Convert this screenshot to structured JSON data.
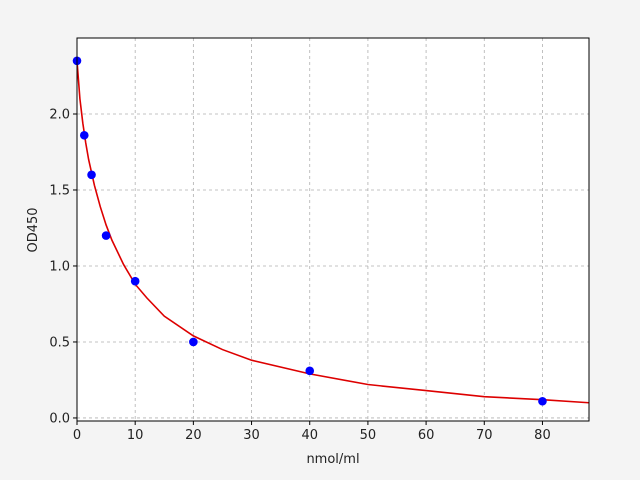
{
  "chart_data": {
    "type": "scatter",
    "title": "",
    "xlabel": "nmol/ml",
    "ylabel": "OD450",
    "xlim": [
      0,
      88
    ],
    "ylim": [
      -0.02,
      2.5
    ],
    "x_ticks": [
      0,
      10,
      20,
      30,
      40,
      50,
      60,
      70,
      80
    ],
    "y_ticks": [
      0.0,
      0.5,
      1.0,
      1.5,
      2.0
    ],
    "x_tick_labels": [
      "0",
      "10",
      "20",
      "30",
      "40",
      "50",
      "60",
      "70",
      "80"
    ],
    "y_tick_labels": [
      "0.0",
      "0.5",
      "1.0",
      "1.5",
      "2.0"
    ],
    "grid": true,
    "series": [
      {
        "kind": "points",
        "color": "#0000ff",
        "x": [
          0,
          1.25,
          2.5,
          5,
          10,
          20,
          40,
          80
        ],
        "y": [
          2.35,
          1.86,
          1.6,
          1.2,
          0.9,
          0.5,
          0.31,
          0.11
        ]
      },
      {
        "kind": "fitted-curve",
        "color": "#dd0000",
        "x": [
          0,
          0.5,
          1,
          1.5,
          2,
          3,
          4,
          5,
          6,
          8,
          10,
          12,
          15,
          20,
          25,
          30,
          40,
          50,
          60,
          70,
          80,
          88
        ],
        "y": [
          2.35,
          2.1,
          1.94,
          1.81,
          1.7,
          1.53,
          1.39,
          1.27,
          1.17,
          1.01,
          0.88,
          0.79,
          0.67,
          0.54,
          0.45,
          0.38,
          0.29,
          0.22,
          0.18,
          0.14,
          0.12,
          0.1
        ]
      }
    ]
  }
}
